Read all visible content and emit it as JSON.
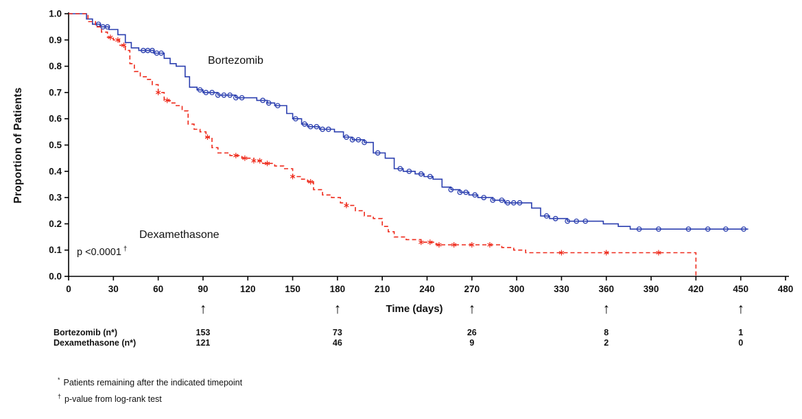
{
  "chart_data": {
    "type": "line",
    "subtype": "kaplan-meier-step",
    "title": "",
    "xlabel": "Time (days)",
    "ylabel": "Proportion of Patients",
    "xlim": [
      0,
      480
    ],
    "ylim": [
      0.0,
      1.0
    ],
    "x_ticks": [
      0,
      30,
      60,
      90,
      120,
      150,
      180,
      210,
      240,
      270,
      300,
      330,
      360,
      390,
      420,
      450,
      480
    ],
    "y_ticks": [
      0.0,
      0.1,
      0.2,
      0.3,
      0.4,
      0.5,
      0.6,
      0.7,
      0.8,
      0.9,
      1.0
    ],
    "grid": false,
    "legend_position": "inline-labels",
    "annotation": {
      "text": "p <0.0001",
      "marker": "†"
    },
    "series": [
      {
        "name": "Bortezomib",
        "color": "#2b3faf",
        "line_style": "solid",
        "marker": "circle",
        "steps": [
          [
            0,
            1.0
          ],
          [
            12,
            0.98
          ],
          [
            16,
            0.96
          ],
          [
            21,
            0.95
          ],
          [
            27,
            0.94
          ],
          [
            33,
            0.92
          ],
          [
            38,
            0.89
          ],
          [
            42,
            0.87
          ],
          [
            47,
            0.86
          ],
          [
            57,
            0.85
          ],
          [
            64,
            0.83
          ],
          [
            68,
            0.81
          ],
          [
            72,
            0.8
          ],
          [
            78,
            0.76
          ],
          [
            81,
            0.72
          ],
          [
            86,
            0.71
          ],
          [
            90,
            0.7
          ],
          [
            100,
            0.69
          ],
          [
            112,
            0.68
          ],
          [
            126,
            0.67
          ],
          [
            133,
            0.66
          ],
          [
            138,
            0.65
          ],
          [
            146,
            0.62
          ],
          [
            150,
            0.6
          ],
          [
            156,
            0.58
          ],
          [
            160,
            0.57
          ],
          [
            168,
            0.56
          ],
          [
            178,
            0.55
          ],
          [
            184,
            0.53
          ],
          [
            190,
            0.52
          ],
          [
            198,
            0.51
          ],
          [
            204,
            0.47
          ],
          [
            212,
            0.45
          ],
          [
            218,
            0.41
          ],
          [
            224,
            0.4
          ],
          [
            232,
            0.39
          ],
          [
            238,
            0.38
          ],
          [
            244,
            0.37
          ],
          [
            250,
            0.34
          ],
          [
            256,
            0.33
          ],
          [
            262,
            0.32
          ],
          [
            268,
            0.31
          ],
          [
            274,
            0.3
          ],
          [
            284,
            0.29
          ],
          [
            292,
            0.28
          ],
          [
            310,
            0.26
          ],
          [
            316,
            0.23
          ],
          [
            322,
            0.22
          ],
          [
            334,
            0.21
          ],
          [
            358,
            0.2
          ],
          [
            368,
            0.19
          ],
          [
            376,
            0.18
          ],
          [
            455,
            0.18
          ]
        ],
        "censor_times": [
          20,
          23,
          26,
          50,
          53,
          56,
          59,
          62,
          88,
          92,
          96,
          100,
          104,
          108,
          112,
          116,
          130,
          134,
          140,
          152,
          158,
          162,
          166,
          170,
          174,
          186,
          190,
          194,
          198,
          207,
          222,
          228,
          236,
          242,
          256,
          262,
          266,
          272,
          278,
          284,
          290,
          294,
          298,
          302,
          320,
          326,
          334,
          340,
          346,
          382,
          395,
          415,
          428,
          440,
          452
        ]
      },
      {
        "name": "Dexamethasone",
        "color": "#ee2a1b",
        "line_style": "dashed",
        "marker": "asterisk",
        "steps": [
          [
            0,
            1.0
          ],
          [
            13,
            0.97
          ],
          [
            18,
            0.95
          ],
          [
            22,
            0.93
          ],
          [
            26,
            0.91
          ],
          [
            30,
            0.9
          ],
          [
            34,
            0.88
          ],
          [
            38,
            0.86
          ],
          [
            41,
            0.81
          ],
          [
            44,
            0.78
          ],
          [
            48,
            0.76
          ],
          [
            52,
            0.75
          ],
          [
            56,
            0.73
          ],
          [
            60,
            0.7
          ],
          [
            64,
            0.67
          ],
          [
            68,
            0.66
          ],
          [
            72,
            0.65
          ],
          [
            76,
            0.63
          ],
          [
            80,
            0.58
          ],
          [
            84,
            0.56
          ],
          [
            88,
            0.55
          ],
          [
            92,
            0.53
          ],
          [
            96,
            0.49
          ],
          [
            100,
            0.47
          ],
          [
            108,
            0.46
          ],
          [
            116,
            0.45
          ],
          [
            124,
            0.44
          ],
          [
            130,
            0.43
          ],
          [
            138,
            0.42
          ],
          [
            144,
            0.41
          ],
          [
            150,
            0.38
          ],
          [
            156,
            0.37
          ],
          [
            160,
            0.36
          ],
          [
            164,
            0.33
          ],
          [
            170,
            0.31
          ],
          [
            176,
            0.3
          ],
          [
            182,
            0.28
          ],
          [
            186,
            0.27
          ],
          [
            192,
            0.25
          ],
          [
            198,
            0.23
          ],
          [
            204,
            0.22
          ],
          [
            210,
            0.19
          ],
          [
            214,
            0.17
          ],
          [
            218,
            0.15
          ],
          [
            226,
            0.14
          ],
          [
            236,
            0.13
          ],
          [
            246,
            0.12
          ],
          [
            290,
            0.11
          ],
          [
            298,
            0.1
          ],
          [
            306,
            0.09
          ],
          [
            420,
            0.0
          ]
        ],
        "censor_times": [
          28,
          33,
          37,
          60,
          66,
          93,
          112,
          118,
          124,
          128,
          133,
          150,
          162,
          186,
          236,
          242,
          248,
          258,
          270,
          282,
          330,
          360,
          395
        ]
      }
    ]
  },
  "risk_table": {
    "timepoints": [
      90,
      180,
      270,
      360,
      450
    ],
    "rows": [
      {
        "label": "Bortezomib (n*)",
        "values": [
          "153",
          "73",
          "26",
          "8",
          "1"
        ]
      },
      {
        "label": "Dexamethasone (n*)",
        "values": [
          "121",
          "46",
          "9",
          "2",
          "0"
        ]
      }
    ]
  },
  "footnotes": [
    {
      "marker": "*",
      "text": "Patients remaining after the indicated timepoint"
    },
    {
      "marker": "†",
      "text": "p-value from log-rank test"
    }
  ],
  "icons": {
    "arrow_up": "↑"
  },
  "colors": {
    "bortezomib": "#2b3faf",
    "dexamethasone": "#ee2a1b",
    "axis": "#000000"
  }
}
